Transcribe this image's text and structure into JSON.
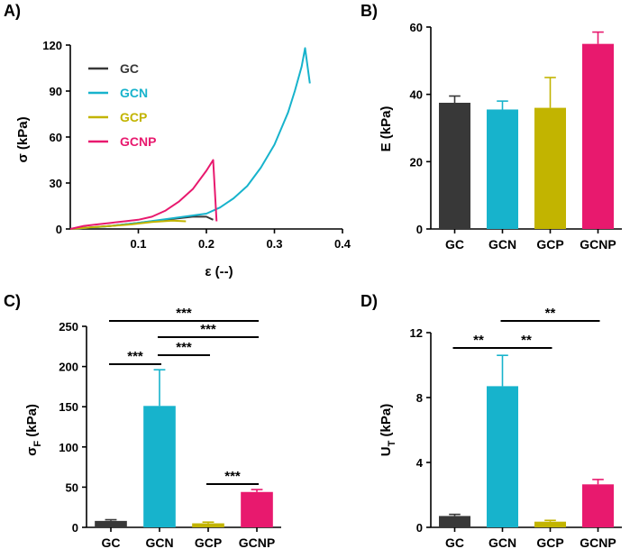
{
  "colors": {
    "GC": "#383838",
    "GCN": "#17b3cc",
    "GCP": "#c2b400",
    "GCNP": "#e8196e",
    "axis": "#000000"
  },
  "chart_data": [
    {
      "panel": "A)",
      "type": "line",
      "xlabel": "ε (--)",
      "ylabel": "σ (kPa)",
      "xlim": [
        0,
        0.4
      ],
      "ylim": [
        0,
        120
      ],
      "xticks": [
        0.1,
        0.2,
        0.3,
        0.4
      ],
      "xtick_labels": [
        "0.1",
        "0.2",
        "0.3",
        "0.4"
      ],
      "yticks": [
        0,
        30,
        60,
        90,
        120
      ],
      "ytick_labels": [
        "0",
        "30",
        "60",
        "90",
        "120"
      ],
      "legend_position": "top-left",
      "series": [
        {
          "name": "GC",
          "color_key": "GC",
          "x": [
            0,
            0.03,
            0.06,
            0.09,
            0.12,
            0.15,
            0.18,
            0.2,
            0.21
          ],
          "y": [
            0,
            1,
            2,
            3.5,
            5,
            6.5,
            8,
            8,
            6
          ]
        },
        {
          "name": "GCN",
          "color_key": "GCN",
          "x": [
            0,
            0.05,
            0.1,
            0.15,
            0.2,
            0.22,
            0.24,
            0.26,
            0.28,
            0.3,
            0.32,
            0.33,
            0.34,
            0.345,
            0.352
          ],
          "y": [
            0,
            1.5,
            4,
            7,
            10,
            14,
            20,
            28,
            40,
            55,
            76,
            90,
            106,
            118,
            95
          ]
        },
        {
          "name": "GCP",
          "color_key": "GCP",
          "x": [
            0,
            0.03,
            0.06,
            0.09,
            0.12,
            0.15,
            0.17
          ],
          "y": [
            0,
            1,
            2,
            3,
            4.5,
            5.5,
            5
          ]
        },
        {
          "name": "GCNP",
          "color_key": "GCNP",
          "x": [
            0,
            0.02,
            0.04,
            0.06,
            0.08,
            0.1,
            0.12,
            0.14,
            0.16,
            0.18,
            0.2,
            0.21,
            0.215
          ],
          "y": [
            0,
            2,
            3,
            4,
            5,
            6,
            8,
            12,
            18,
            26,
            38,
            45,
            5
          ]
        }
      ]
    },
    {
      "panel": "B)",
      "type": "bar",
      "categories": [
        "GC",
        "GCN",
        "GCP",
        "GCNP"
      ],
      "values": [
        37.5,
        35.5,
        36,
        55
      ],
      "errors": [
        2,
        2.5,
        9,
        3.5
      ],
      "ylabel": "E (kPa)",
      "ylim": [
        0,
        60
      ],
      "yticks": [
        0,
        20,
        40,
        60
      ],
      "ytick_labels": [
        "0",
        "20",
        "40",
        "60"
      ]
    },
    {
      "panel": "C)",
      "type": "bar",
      "categories": [
        "GC",
        "GCN",
        "GCP",
        "GCNP"
      ],
      "values": [
        8,
        151,
        5,
        44
      ],
      "errors": [
        1.5,
        45,
        1.5,
        3
      ],
      "ylabel": "σF (kPa)",
      "ylabel_main": "σ",
      "ylabel_sub": "F",
      "ylabel_tail": " (kPa)",
      "ylim": [
        0,
        250
      ],
      "yticks": [
        0,
        50,
        100,
        150,
        200,
        250
      ],
      "ytick_labels": [
        "0",
        "50",
        "100",
        "150",
        "200",
        "250"
      ],
      "significance": [
        {
          "from": 0,
          "to": 3,
          "label": "***"
        },
        {
          "from": 1,
          "to": 3,
          "label": "***"
        },
        {
          "from": 1,
          "to": 2,
          "label": "***"
        },
        {
          "from": 0,
          "to": 1,
          "label": "***"
        },
        {
          "from": 2,
          "to": 3,
          "label": "***"
        }
      ]
    },
    {
      "panel": "D)",
      "type": "bar",
      "categories": [
        "GC",
        "GCN",
        "GCP",
        "GCNP"
      ],
      "values": [
        0.7,
        8.7,
        0.35,
        2.65
      ],
      "errors": [
        0.1,
        1.9,
        0.08,
        0.3
      ],
      "ylabel": "UT (kPa)",
      "ylabel_main": "U",
      "ylabel_sub": "T",
      "ylabel_tail": " (kPa)",
      "ylim": [
        0,
        12
      ],
      "yticks": [
        0,
        4,
        8,
        12
      ],
      "ytick_labels": [
        "0",
        "4",
        "8",
        "12"
      ],
      "significance": [
        {
          "from": 1,
          "to": 3,
          "label": "**"
        },
        {
          "from": 1,
          "to": 2,
          "label": "**"
        },
        {
          "from": 0,
          "to": 1,
          "label": "**"
        }
      ]
    }
  ]
}
